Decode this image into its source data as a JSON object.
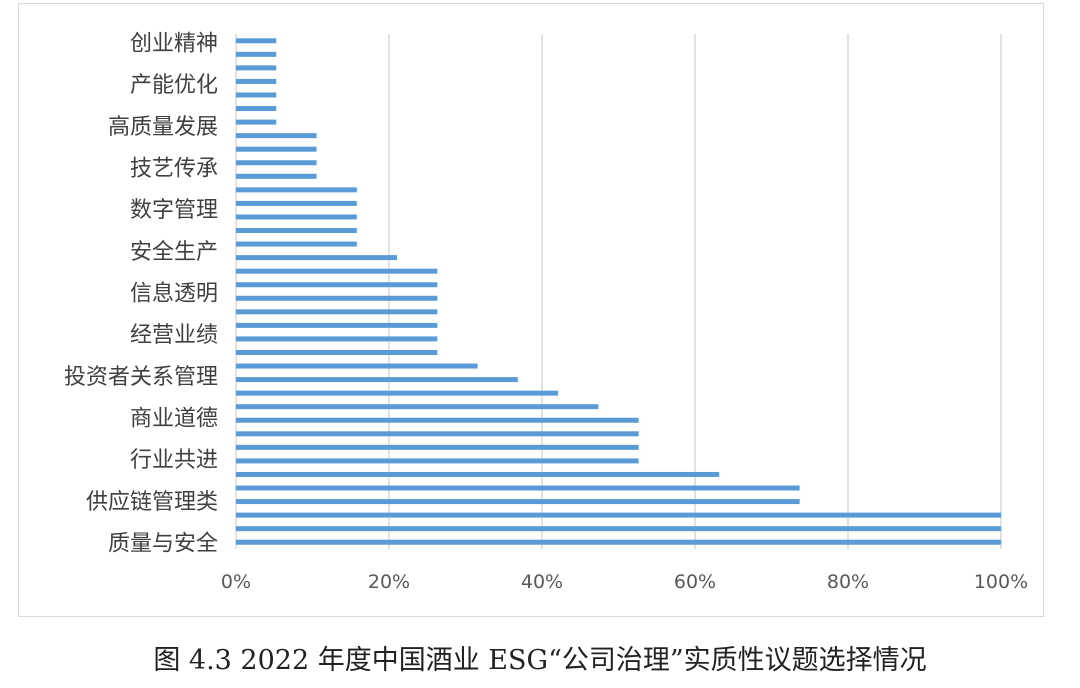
{
  "chart_data": {
    "type": "bar",
    "orientation": "horizontal",
    "categories_visible": [
      "创业精神",
      "产能优化",
      "高质量发展",
      "技艺传承",
      "数字管理",
      "安全生产",
      "信息透明",
      "经营业绩",
      "投资者关系管理",
      "商业道德",
      "行业共进",
      "供应链管理类",
      "质量与安全"
    ],
    "values": [
      0.0526,
      0.0526,
      0.0526,
      0.0526,
      0.0526,
      0.0526,
      0.0526,
      0.1053,
      0.1053,
      0.1053,
      0.1053,
      0.1579,
      0.1579,
      0.1579,
      0.1579,
      0.1579,
      0.2105,
      0.2632,
      0.2632,
      0.2632,
      0.2632,
      0.2632,
      0.2632,
      0.2632,
      0.3158,
      0.3684,
      0.4211,
      0.4737,
      0.5263,
      0.5263,
      0.5263,
      0.5263,
      0.6316,
      0.7368,
      0.7368,
      1.0,
      1.0,
      1.0
    ],
    "xlim": [
      0,
      1
    ],
    "x_ticks": [
      "0%",
      "20%",
      "40%",
      "60%",
      "80%",
      "100%"
    ],
    "grid": true,
    "bar_color": "#5b9bd5",
    "grid_color": "#d9d9d9"
  },
  "caption": "图 4.3 2022 年度中国酒业 ESG“公司治理”实质性议题选择情况"
}
